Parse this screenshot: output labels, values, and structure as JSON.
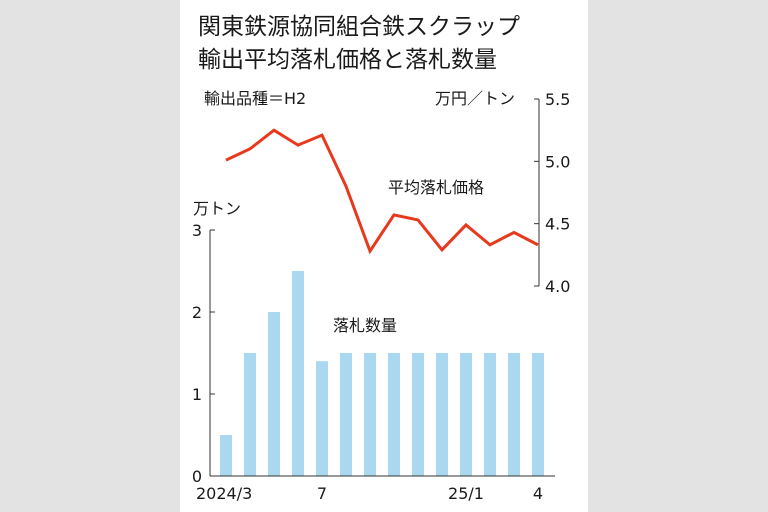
{
  "chart_data": [
    {
      "type": "line",
      "title_lines": [
        "関東鉄源協同組合鉄スクラップ",
        "輸出平均落札価格と落札数量"
      ],
      "note": "輸出品種＝H2",
      "ylabel": "万円／トン",
      "series_label": "平均落札価格",
      "ylim": [
        4.0,
        5.5
      ],
      "yticks": [
        "4.0",
        "4.5",
        "5.0",
        "5.5"
      ],
      "x": [
        "2024-03",
        "2024-04",
        "2024-05",
        "2024-06",
        "2024-07",
        "2024-08",
        "2024-09",
        "2024-10",
        "2024-11",
        "2024-12",
        "2025-01",
        "2025-02",
        "2025-03",
        "2025-04"
      ],
      "values": [
        5.01,
        5.1,
        5.25,
        5.13,
        5.21,
        4.8,
        4.28,
        4.57,
        4.53,
        4.29,
        4.49,
        4.33,
        4.43,
        4.33
      ],
      "color": "#e8391d"
    },
    {
      "type": "bar",
      "ylabel": "万トン",
      "series_label": "落札数量",
      "ylim": [
        0,
        3
      ],
      "yticks": [
        "0",
        "1",
        "2",
        "3"
      ],
      "x": [
        "2024-03",
        "2024-04",
        "2024-05",
        "2024-06",
        "2024-07",
        "2024-08",
        "2024-09",
        "2024-10",
        "2024-11",
        "2024-12",
        "2025-01",
        "2025-02",
        "2025-03",
        "2025-04"
      ],
      "values": [
        0.5,
        1.5,
        2.0,
        2.5,
        1.4,
        1.5,
        1.5,
        1.5,
        1.5,
        1.5,
        1.5,
        1.5,
        1.5,
        1.5
      ],
      "xtick_labels": [
        "2024/3",
        "7",
        "25/1",
        "4"
      ],
      "color": "#a9d8f0"
    }
  ]
}
